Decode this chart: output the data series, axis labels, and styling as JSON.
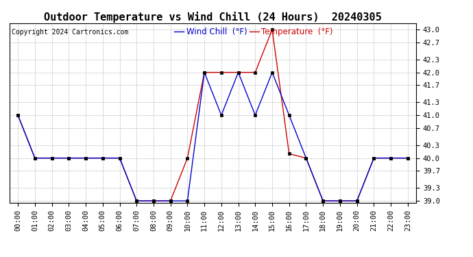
{
  "title": "Outdoor Temperature vs Wind Chill (24 Hours)  20240305",
  "copyright": "Copyright 2024 Cartronics.com",
  "legend_wind_chill": "Wind Chill  (°F)",
  "legend_temperature": "Temperature  (°F)",
  "x_labels": [
    "00:00",
    "01:00",
    "02:00",
    "03:00",
    "04:00",
    "05:00",
    "06:00",
    "07:00",
    "08:00",
    "09:00",
    "10:00",
    "11:00",
    "12:00",
    "13:00",
    "14:00",
    "15:00",
    "16:00",
    "17:00",
    "18:00",
    "19:00",
    "20:00",
    "21:00",
    "22:00",
    "23:00"
  ],
  "temperature": [
    41.0,
    40.0,
    40.0,
    40.0,
    40.0,
    40.0,
    40.0,
    39.0,
    39.0,
    39.0,
    40.0,
    42.0,
    42.0,
    42.0,
    42.0,
    43.0,
    40.1,
    40.0,
    39.0,
    39.0,
    39.0,
    40.0,
    40.0,
    40.0
  ],
  "wind_chill": [
    41.0,
    40.0,
    40.0,
    40.0,
    40.0,
    40.0,
    40.0,
    39.0,
    39.0,
    39.0,
    39.0,
    42.0,
    41.0,
    42.0,
    41.0,
    42.0,
    41.0,
    40.0,
    39.0,
    39.0,
    39.0,
    40.0,
    40.0,
    40.0
  ],
  "temp_color": "#cc0000",
  "wind_color": "#0000cc",
  "background_color": "#ffffff",
  "grid_color": "#aaaaaa",
  "ylim_min": 39.0,
  "ylim_max": 43.0,
  "yticks": [
    39.0,
    39.3,
    39.7,
    40.0,
    40.3,
    40.7,
    41.0,
    41.3,
    41.7,
    42.0,
    42.3,
    42.7,
    43.0
  ],
  "title_fontsize": 11,
  "tick_fontsize": 7.5,
  "copyright_fontsize": 7,
  "legend_fontsize": 8.5
}
